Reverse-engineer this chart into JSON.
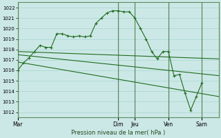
{
  "xlabel": "Pression niveau de la mer( hPa )",
  "bg_color": "#cce8e6",
  "grid_color": "#b0d8d5",
  "line_color": "#1e6b1e",
  "ylim": [
    1011.5,
    1022.5
  ],
  "yticks": [
    1012,
    1013,
    1014,
    1015,
    1016,
    1017,
    1018,
    1019,
    1020,
    1021,
    1022
  ],
  "xlim": [
    0,
    36
  ],
  "day_labels": [
    "Mar",
    "Dim",
    "Jeu",
    "Ven",
    "Sam"
  ],
  "day_positions": [
    0,
    18,
    21,
    27,
    33
  ],
  "series1_x": [
    0,
    1,
    2,
    3,
    4,
    5,
    6,
    7,
    8,
    9,
    10,
    11,
    12,
    13,
    14,
    15,
    16,
    17,
    18,
    19,
    20,
    21,
    22,
    23,
    24,
    25,
    26,
    27,
    28,
    29,
    30,
    31,
    32,
    33
  ],
  "series1_y": [
    1016.0,
    1016.7,
    1017.2,
    1017.8,
    1018.4,
    1018.2,
    1018.2,
    1019.5,
    1019.5,
    1019.3,
    1019.2,
    1019.3,
    1019.2,
    1019.3,
    1020.5,
    1021.0,
    1021.5,
    1021.7,
    1021.7,
    1021.6,
    1021.6,
    1021.0,
    1020.0,
    1019.0,
    1017.8,
    1017.1,
    1017.8,
    1017.8,
    1015.5,
    1015.6,
    1013.8,
    1012.2,
    1013.5,
    1014.8
  ],
  "series2_x": [
    0,
    36
  ],
  "series2_y": [
    1017.8,
    1017.1
  ],
  "series3_x": [
    0,
    36
  ],
  "series3_y": [
    1017.5,
    1015.5
  ],
  "series4_x": [
    0,
    36
  ],
  "series4_y": [
    1016.8,
    1013.5
  ]
}
